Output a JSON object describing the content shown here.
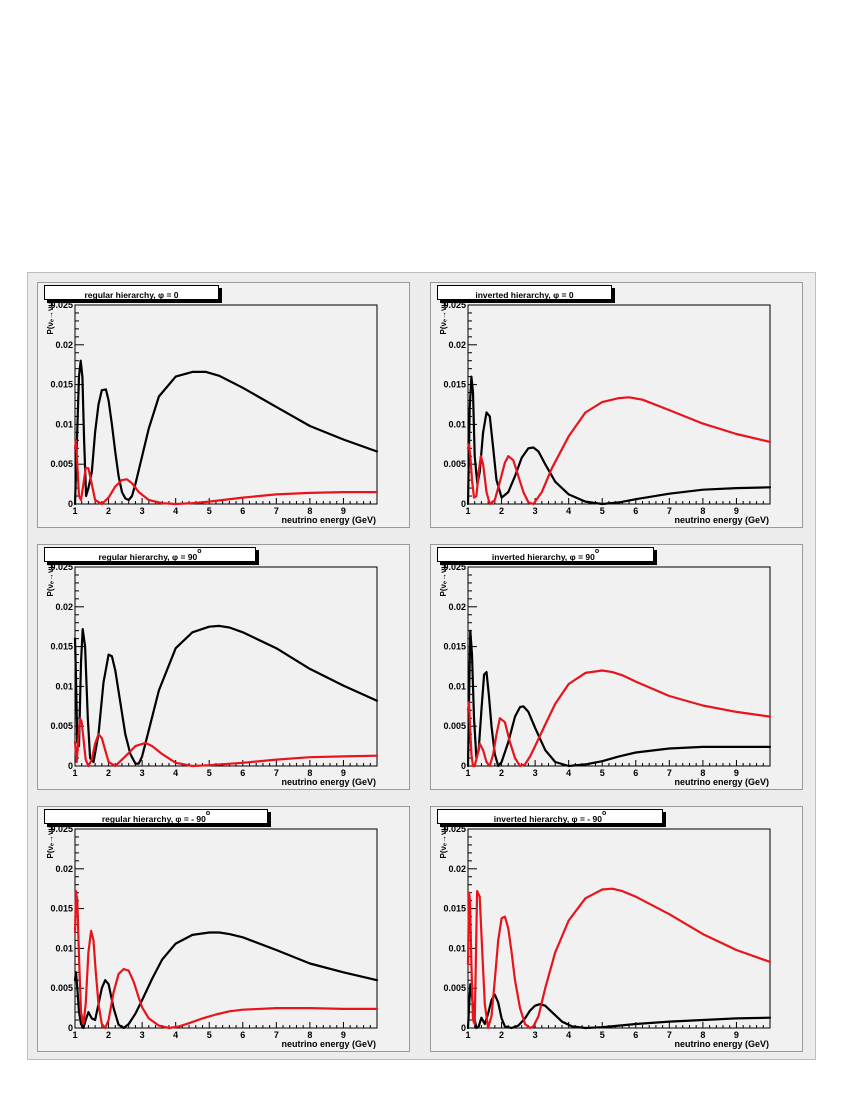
{
  "colors": {
    "regular": "#000000",
    "inverted_red": "#e8141b"
  },
  "chart_data": [
    {
      "type": "line",
      "title": "regular hierarchy, φ = 0",
      "title_main": "regular hierarchy, φ = 0",
      "title_sup": "",
      "xlabel": "neutrino energy (GeV)",
      "ylabel": "P(νₑ→νμ)",
      "xlim": [
        1,
        10
      ],
      "ylim": [
        0,
        0.025
      ],
      "grid": false,
      "xticks": [
        1,
        2,
        3,
        4,
        5,
        6,
        7,
        8,
        9
      ],
      "yticks": [
        0,
        0.005,
        0.01,
        0.015,
        0.02,
        0.025
      ],
      "series": [
        {
          "color": "#000000",
          "x": [
            1.0,
            1.08,
            1.12,
            1.17,
            1.22,
            1.27,
            1.33,
            1.4,
            1.5,
            1.6,
            1.7,
            1.8,
            1.92,
            2.0,
            2.1,
            2.2,
            2.3,
            2.4,
            2.5,
            2.6,
            2.7,
            2.8,
            3.0,
            3.2,
            3.5,
            4.0,
            4.5,
            4.9,
            5.3,
            6.0,
            7.0,
            8.0,
            9.0,
            10.0
          ],
          "y": [
            0.0,
            0.011,
            0.016,
            0.018,
            0.016,
            0.008,
            0.001,
            0.002,
            0.004,
            0.009,
            0.0125,
            0.0143,
            0.0144,
            0.013,
            0.01,
            0.0065,
            0.0035,
            0.0015,
            0.0007,
            0.0005,
            0.001,
            0.0025,
            0.006,
            0.0095,
            0.0135,
            0.016,
            0.0166,
            0.0166,
            0.0161,
            0.0146,
            0.0122,
            0.0098,
            0.0081,
            0.0066
          ]
        },
        {
          "color": "#e8141b",
          "x": [
            1.0,
            1.03,
            1.08,
            1.12,
            1.18,
            1.25,
            1.32,
            1.4,
            1.5,
            1.6,
            1.8,
            2.0,
            2.2,
            2.4,
            2.55,
            2.7,
            2.9,
            3.2,
            3.6,
            4.0,
            4.5,
            5.0,
            6.0,
            7.0,
            8.0,
            9.0,
            10.0
          ],
          "y": [
            0.007,
            0.008,
            0.004,
            0.001,
            0.0005,
            0.0025,
            0.0045,
            0.0045,
            0.0025,
            0.0005,
            0.0,
            0.0008,
            0.0022,
            0.003,
            0.0031,
            0.0026,
            0.0015,
            0.0005,
            0.0001,
            0.0,
            0.0001,
            0.0003,
            0.0008,
            0.0012,
            0.0014,
            0.0015,
            0.0015
          ]
        }
      ]
    },
    {
      "type": "line",
      "title": "inverted hierarchy, φ = 0",
      "title_main": "inverted hierarchy, φ = 0",
      "title_sup": "",
      "xlabel": "neutrino energy (GeV)",
      "ylabel": "P(νₑ→νμ)",
      "xlim": [
        1,
        10
      ],
      "ylim": [
        0,
        0.025
      ],
      "grid": false,
      "xticks": [
        1,
        2,
        3,
        4,
        5,
        6,
        7,
        8,
        9
      ],
      "yticks": [
        0,
        0.005,
        0.01,
        0.015,
        0.02,
        0.025
      ],
      "series": [
        {
          "color": "#000000",
          "x": [
            1.0,
            1.05,
            1.1,
            1.15,
            1.2,
            1.28,
            1.35,
            1.45,
            1.55,
            1.65,
            1.75,
            1.85,
            2.0,
            2.2,
            2.4,
            2.6,
            2.8,
            2.95,
            3.1,
            3.3,
            3.6,
            4.0,
            4.5,
            5.0,
            5.5,
            6.0,
            7.0,
            8.0,
            9.0,
            10.0
          ],
          "y": [
            0.0,
            0.012,
            0.016,
            0.014,
            0.006,
            0.0025,
            0.004,
            0.009,
            0.0115,
            0.011,
            0.007,
            0.003,
            0.0008,
            0.0015,
            0.0035,
            0.0058,
            0.007,
            0.0071,
            0.0066,
            0.005,
            0.0028,
            0.0012,
            0.0003,
            0.0,
            0.0002,
            0.0006,
            0.0013,
            0.0018,
            0.002,
            0.0021
          ]
        },
        {
          "color": "#e8141b",
          "x": [
            1.0,
            1.03,
            1.07,
            1.12,
            1.18,
            1.25,
            1.32,
            1.38,
            1.45,
            1.55,
            1.65,
            1.8,
            1.95,
            2.1,
            2.2,
            2.35,
            2.5,
            2.65,
            2.8,
            2.95,
            3.2,
            3.5,
            4.0,
            4.5,
            5.0,
            5.5,
            5.8,
            6.2,
            7.0,
            8.0,
            9.0,
            10.0
          ],
          "y": [
            0.007,
            0.0075,
            0.006,
            0.003,
            0.0008,
            0.001,
            0.004,
            0.006,
            0.005,
            0.0015,
            0.0,
            0.0005,
            0.0028,
            0.0052,
            0.006,
            0.0055,
            0.0035,
            0.0015,
            0.0002,
            0.0,
            0.0015,
            0.0045,
            0.0085,
            0.0115,
            0.0128,
            0.0133,
            0.0134,
            0.0131,
            0.0118,
            0.0101,
            0.0088,
            0.0078
          ]
        }
      ]
    },
    {
      "type": "line",
      "title": "regular hierarchy, φ = 90°",
      "title_main": "regular hierarchy, φ = 90",
      "title_sup": "o",
      "xlabel": "neutrino energy (GeV)",
      "ylabel": "P(νₑ→νμ)",
      "xlim": [
        1,
        10
      ],
      "ylim": [
        0,
        0.025
      ],
      "grid": false,
      "xticks": [
        1,
        2,
        3,
        4,
        5,
        6,
        7,
        8,
        9
      ],
      "yticks": [
        0,
        0.005,
        0.01,
        0.015,
        0.02,
        0.025
      ],
      "series": [
        {
          "color": "#000000",
          "x": [
            1.0,
            1.03,
            1.07,
            1.12,
            1.18,
            1.23,
            1.3,
            1.38,
            1.45,
            1.55,
            1.7,
            1.85,
            2.0,
            2.1,
            2.2,
            2.35,
            2.5,
            2.65,
            2.8,
            2.9,
            3.0,
            3.2,
            3.5,
            4.0,
            4.5,
            5.0,
            5.3,
            5.6,
            6.0,
            7.0,
            8.0,
            9.0,
            10.0
          ],
          "y": [
            0.016,
            0.011,
            0.003,
            0.0025,
            0.013,
            0.0172,
            0.015,
            0.006,
            0.001,
            0.0005,
            0.004,
            0.0105,
            0.014,
            0.0138,
            0.012,
            0.008,
            0.004,
            0.0015,
            0.0003,
            0.0003,
            0.0012,
            0.0045,
            0.0095,
            0.0148,
            0.0168,
            0.0175,
            0.0176,
            0.0174,
            0.0168,
            0.0148,
            0.0122,
            0.0101,
            0.0082
          ]
        },
        {
          "color": "#e8141b",
          "x": [
            1.0,
            1.05,
            1.1,
            1.15,
            1.2,
            1.25,
            1.32,
            1.4,
            1.5,
            1.6,
            1.7,
            1.8,
            1.9,
            2.0,
            2.2,
            2.5,
            2.8,
            3.1,
            3.3,
            3.6,
            4.0,
            4.5,
            5.0,
            6.0,
            7.0,
            8.0,
            9.0,
            10.0
          ],
          "y": [
            0.003,
            0.0005,
            0.0035,
            0.006,
            0.0055,
            0.0035,
            0.0008,
            0.0,
            0.0008,
            0.0028,
            0.004,
            0.0035,
            0.002,
            0.0005,
            0.0,
            0.0012,
            0.0025,
            0.0029,
            0.0025,
            0.0015,
            0.0004,
            0.0,
            0.0001,
            0.0004,
            0.0008,
            0.0011,
            0.0012,
            0.0013
          ]
        }
      ]
    },
    {
      "type": "line",
      "title": "inverted hierarchy, φ = 90°",
      "title_main": "inverted hierarchy, φ = 90",
      "title_sup": "o",
      "xlabel": "neutrino energy (GeV)",
      "ylabel": "P(νₑ→νμ)",
      "xlim": [
        1,
        10
      ],
      "ylim": [
        0,
        0.025
      ],
      "grid": false,
      "xticks": [
        1,
        2,
        3,
        4,
        5,
        6,
        7,
        8,
        9
      ],
      "yticks": [
        0,
        0.005,
        0.01,
        0.015,
        0.02,
        0.025
      ],
      "series": [
        {
          "color": "#000000",
          "x": [
            1.0,
            1.03,
            1.07,
            1.12,
            1.18,
            1.25,
            1.32,
            1.4,
            1.48,
            1.55,
            1.62,
            1.7,
            1.8,
            1.9,
            2.0,
            2.2,
            2.4,
            2.55,
            2.65,
            2.8,
            3.0,
            3.3,
            3.6,
            4.0,
            4.5,
            5.0,
            5.5,
            6.0,
            7.0,
            8.0,
            9.0,
            10.0
          ],
          "y": [
            0.0,
            0.008,
            0.017,
            0.014,
            0.006,
            0.001,
            0.002,
            0.007,
            0.0115,
            0.0118,
            0.009,
            0.005,
            0.0015,
            0.0,
            0.0005,
            0.003,
            0.0062,
            0.0074,
            0.0075,
            0.0068,
            0.0048,
            0.002,
            0.0005,
            0.0,
            0.0002,
            0.0006,
            0.0012,
            0.0017,
            0.0022,
            0.0024,
            0.0024,
            0.0024
          ]
        },
        {
          "color": "#e8141b",
          "x": [
            1.0,
            1.03,
            1.06,
            1.1,
            1.15,
            1.2,
            1.27,
            1.35,
            1.45,
            1.55,
            1.65,
            1.75,
            1.85,
            1.95,
            2.1,
            2.25,
            2.4,
            2.55,
            2.7,
            2.85,
            3.0,
            3.3,
            3.6,
            4.0,
            4.5,
            5.0,
            5.3,
            5.6,
            6.0,
            7.0,
            8.0,
            9.0,
            10.0
          ],
          "y": [
            0.007,
            0.008,
            0.005,
            0.0015,
            0.0,
            0.0,
            0.0012,
            0.0028,
            0.002,
            0.0005,
            0.0,
            0.0015,
            0.004,
            0.006,
            0.0055,
            0.003,
            0.001,
            0.0,
            0.0002,
            0.0012,
            0.0025,
            0.0052,
            0.0078,
            0.0103,
            0.0117,
            0.012,
            0.0118,
            0.0114,
            0.0106,
            0.0088,
            0.0076,
            0.0068,
            0.0062
          ]
        }
      ]
    },
    {
      "type": "line",
      "title": "regular hierarchy, φ = - 90°",
      "title_main": "regular hierarchy, φ = - 90",
      "title_sup": "o",
      "xlabel": "neutrino energy (GeV)",
      "ylabel": "P(νₑ→νμ)",
      "xlim": [
        1,
        10
      ],
      "ylim": [
        0,
        0.025
      ],
      "grid": false,
      "xticks": [
        1,
        2,
        3,
        4,
        5,
        6,
        7,
        8,
        9
      ],
      "yticks": [
        0,
        0.005,
        0.01,
        0.015,
        0.02,
        0.025
      ],
      "series": [
        {
          "color": "#000000",
          "x": [
            1.0,
            1.03,
            1.07,
            1.12,
            1.18,
            1.25,
            1.32,
            1.4,
            1.5,
            1.6,
            1.7,
            1.8,
            1.9,
            2.0,
            2.15,
            2.3,
            2.45,
            2.6,
            2.8,
            3.0,
            3.3,
            3.6,
            4.0,
            4.5,
            5.0,
            5.3,
            5.6,
            6.0,
            7.0,
            8.0,
            9.0,
            10.0
          ],
          "y": [
            0.006,
            0.007,
            0.005,
            0.002,
            0.0005,
            0.0,
            0.001,
            0.002,
            0.0012,
            0.001,
            0.003,
            0.005,
            0.006,
            0.0055,
            0.0025,
            0.0004,
            0.0,
            0.0005,
            0.0018,
            0.0035,
            0.0062,
            0.0086,
            0.0106,
            0.0117,
            0.012,
            0.012,
            0.0118,
            0.0114,
            0.0098,
            0.0081,
            0.007,
            0.006
          ]
        },
        {
          "color": "#e8141b",
          "x": [
            1.0,
            1.03,
            1.07,
            1.12,
            1.18,
            1.25,
            1.32,
            1.4,
            1.48,
            1.55,
            1.62,
            1.7,
            1.8,
            1.9,
            2.0,
            2.15,
            2.3,
            2.45,
            2.6,
            2.75,
            2.9,
            3.0,
            3.2,
            3.5,
            3.8,
            4.1,
            4.4,
            4.8,
            5.2,
            5.6,
            6.0,
            7.0,
            8.0,
            9.0,
            10.0
          ],
          "y": [
            0.012,
            0.0172,
            0.016,
            0.009,
            0.002,
            0.0005,
            0.003,
            0.0095,
            0.0122,
            0.011,
            0.007,
            0.003,
            0.0005,
            0.0,
            0.001,
            0.0045,
            0.0068,
            0.0074,
            0.0072,
            0.0058,
            0.0038,
            0.0026,
            0.0012,
            0.0003,
            0.0,
            0.0002,
            0.0006,
            0.0012,
            0.0017,
            0.0021,
            0.0023,
            0.0025,
            0.0025,
            0.0024,
            0.0024
          ]
        }
      ]
    },
    {
      "type": "line",
      "title": "inverted hierarchy, φ = - 90°",
      "title_main": "inverted hierarchy, φ = - 90",
      "title_sup": "o",
      "xlabel": "neutrino energy (GeV)",
      "ylabel": "P(νₑ→νμ)",
      "xlim": [
        1,
        10
      ],
      "ylim": [
        0,
        0.025
      ],
      "grid": false,
      "xticks": [
        1,
        2,
        3,
        4,
        5,
        6,
        7,
        8,
        9
      ],
      "yticks": [
        0,
        0.005,
        0.01,
        0.015,
        0.02,
        0.025
      ],
      "series": [
        {
          "color": "#000000",
          "x": [
            1.0,
            1.03,
            1.07,
            1.12,
            1.18,
            1.25,
            1.32,
            1.4,
            1.5,
            1.6,
            1.7,
            1.8,
            1.9,
            2.0,
            2.1,
            2.3,
            2.5,
            2.7,
            2.85,
            3.0,
            3.15,
            3.3,
            3.5,
            3.8,
            4.1,
            4.5,
            5.0,
            5.5,
            6.0,
            7.0,
            8.0,
            9.0,
            10.0
          ],
          "y": [
            0.0,
            0.0025,
            0.0055,
            0.004,
            0.0015,
            0.0,
            0.0002,
            0.0013,
            0.0005,
            0.0018,
            0.0035,
            0.0042,
            0.0032,
            0.0012,
            0.0002,
            0.0,
            0.0003,
            0.0012,
            0.0022,
            0.0028,
            0.003,
            0.0028,
            0.002,
            0.0008,
            0.0002,
            0.0,
            0.0001,
            0.0003,
            0.0005,
            0.0008,
            0.001,
            0.0012,
            0.0013
          ]
        },
        {
          "color": "#e8141b",
          "x": [
            1.0,
            1.03,
            1.06,
            1.1,
            1.15,
            1.2,
            1.27,
            1.35,
            1.42,
            1.5,
            1.6,
            1.7,
            1.8,
            1.9,
            2.0,
            2.1,
            2.2,
            2.3,
            2.4,
            2.55,
            2.7,
            2.85,
            2.95,
            3.1,
            3.3,
            3.6,
            4.0,
            4.5,
            5.0,
            5.3,
            5.6,
            6.0,
            7.0,
            8.0,
            9.0,
            10.0
          ],
          "y": [
            0.008,
            0.017,
            0.016,
            0.008,
            0.001,
            0.0005,
            0.0172,
            0.0165,
            0.01,
            0.003,
            0.0,
            0.0015,
            0.006,
            0.011,
            0.0138,
            0.014,
            0.0125,
            0.0095,
            0.006,
            0.0025,
            0.0005,
            0.0,
            0.0002,
            0.0015,
            0.005,
            0.0095,
            0.0135,
            0.0163,
            0.0174,
            0.0175,
            0.0172,
            0.0165,
            0.0143,
            0.0118,
            0.0098,
            0.0083
          ]
        }
      ]
    }
  ]
}
